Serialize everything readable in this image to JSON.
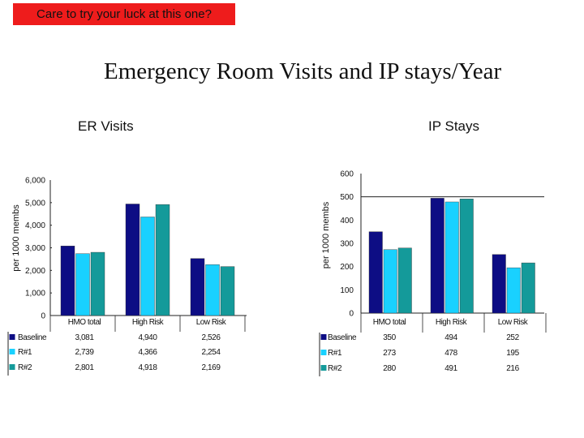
{
  "banner": {
    "text": "Care to try your luck at this one?",
    "color": "#ee1c1c"
  },
  "title": "Emergency Room Visits and IP stays/Year",
  "colors": {
    "Baseline": "#0d0d84",
    "R#1": "#19d1ff",
    "R#2": "#149a9a"
  },
  "chart_data": [
    {
      "type": "bar",
      "subtitle": "ER Visits",
      "ylabel": "per 1000 membs",
      "ylim": [
        0,
        6000
      ],
      "yticks": [
        "0",
        "1,000",
        "2,000",
        "3,000",
        "4,000",
        "5,000",
        "6,000"
      ],
      "categories": [
        "HMO total",
        "High Risk",
        "Low Risk"
      ],
      "series": [
        {
          "name": "Baseline",
          "values": [
            3081,
            4940,
            2526
          ],
          "labels": [
            "3,081",
            "4,940",
            "2,526"
          ]
        },
        {
          "name": "R#1",
          "values": [
            2739,
            4366,
            2254
          ],
          "labels": [
            "2,739",
            "4,366",
            "2,254"
          ]
        },
        {
          "name": "R#2",
          "values": [
            2801,
            4918,
            2169
          ],
          "labels": [
            "2,801",
            "4,918",
            "2,169"
          ]
        }
      ],
      "grid": false,
      "legend": "data table below chart"
    },
    {
      "type": "bar",
      "subtitle": "IP Stays",
      "ylabel": "per 1000 membs",
      "ylim": [
        0,
        600
      ],
      "yticks": [
        "0",
        "100",
        "200",
        "300",
        "400",
        "500",
        "600"
      ],
      "categories": [
        "HMO total",
        "High Risk",
        "Low Risk"
      ],
      "series": [
        {
          "name": "Baseline",
          "values": [
            350,
            494,
            252
          ],
          "labels": [
            "350",
            "494",
            "252"
          ]
        },
        {
          "name": "R#1",
          "values": [
            273,
            478,
            195
          ],
          "labels": [
            "273",
            "478",
            "195"
          ]
        },
        {
          "name": "R#2",
          "values": [
            280,
            491,
            216
          ],
          "labels": [
            "280",
            "491",
            "216"
          ]
        }
      ],
      "grid": false,
      "legend": "data table below chart"
    }
  ]
}
